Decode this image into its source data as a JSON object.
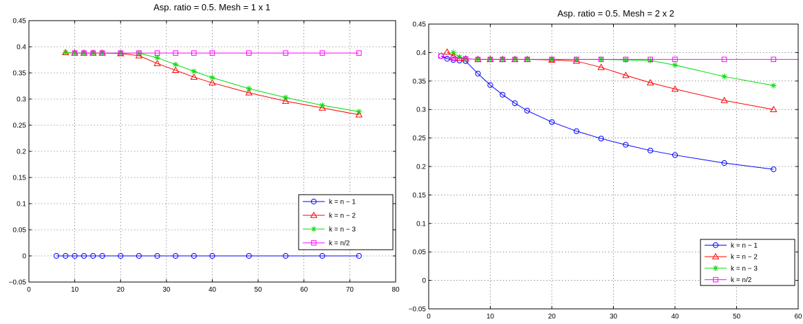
{
  "chart_data": [
    {
      "type": "line",
      "title": "Asp. ratio = 0.5.  Mesh = 1 x 1",
      "xlabel": "",
      "ylabel": "",
      "xlim": [
        0,
        80
      ],
      "ylim": [
        -0.05,
        0.45
      ],
      "xticks": [
        "0",
        "10",
        "20",
        "30",
        "40",
        "50",
        "60",
        "70",
        "80"
      ],
      "yticks": [
        "−0.05",
        "0",
        "0.05",
        "0.1",
        "0.15",
        "0.2",
        "0.25",
        "0.3",
        "0.35",
        "0.4",
        "0.45"
      ],
      "grid": true,
      "legend_position": "lower-right",
      "series": [
        {
          "name": "k = n − 1",
          "color": "#0000ff",
          "marker": "circle",
          "x": [
            6,
            8,
            10,
            12,
            14,
            16,
            20,
            24,
            28,
            32,
            36,
            40,
            48,
            56,
            64,
            72
          ],
          "y": [
            0,
            0,
            0,
            0,
            0,
            0,
            0,
            0,
            0,
            0,
            0,
            0,
            0,
            0,
            0,
            0
          ]
        },
        {
          "name": "k = n − 2",
          "color": "#ff0000",
          "marker": "triangle",
          "x": [
            8,
            10,
            12,
            14,
            16,
            20,
            24,
            28,
            32,
            36,
            40,
            48,
            56,
            64,
            72
          ],
          "y": [
            0.389,
            0.388,
            0.388,
            0.388,
            0.388,
            0.387,
            0.383,
            0.368,
            0.355,
            0.342,
            0.331,
            0.312,
            0.296,
            0.283,
            0.27
          ]
        },
        {
          "name": "k = n − 3",
          "color": "#00dd00",
          "marker": "star",
          "x": [
            8,
            10,
            12,
            14,
            16,
            20,
            24,
            28,
            32,
            36,
            40,
            48,
            56,
            64,
            72
          ],
          "y": [
            0.389,
            0.388,
            0.388,
            0.388,
            0.388,
            0.388,
            0.388,
            0.379,
            0.366,
            0.353,
            0.341,
            0.32,
            0.303,
            0.288,
            0.276
          ]
        },
        {
          "name": "k = n/2",
          "color": "#ff00ff",
          "marker": "square",
          "x": [
            10,
            12,
            14,
            16,
            20,
            24,
            28,
            32,
            36,
            40,
            48,
            56,
            64,
            72
          ],
          "y": [
            0.388,
            0.388,
            0.388,
            0.388,
            0.388,
            0.388,
            0.388,
            0.388,
            0.388,
            0.388,
            0.388,
            0.388,
            0.388,
            0.388
          ]
        }
      ]
    },
    {
      "type": "line",
      "title": "Asp. ratio = 0.5.  Mesh = 2 x 2",
      "xlabel": "",
      "ylabel": "",
      "xlim": [
        0,
        60
      ],
      "ylim": [
        -0.05,
        0.45
      ],
      "xticks": [
        "0",
        "10",
        "20",
        "30",
        "40",
        "50",
        "60"
      ],
      "yticks": [
        "−0.05",
        "0",
        "0.05",
        "0.1",
        "0.15",
        "0.2",
        "0.25",
        "0.3",
        "0.35",
        "0.4",
        "0.45"
      ],
      "grid": true,
      "legend_position": "lower-right",
      "series": [
        {
          "name": "k = n − 1",
          "color": "#0000ff",
          "marker": "circle",
          "x": [
            2,
            3,
            4,
            5,
            6,
            8,
            10,
            12,
            14,
            16,
            20,
            24,
            28,
            32,
            36,
            40,
            48,
            56
          ],
          "y": [
            0.394,
            0.389,
            0.387,
            0.386,
            0.385,
            0.363,
            0.343,
            0.326,
            0.311,
            0.298,
            0.278,
            0.262,
            0.249,
            0.238,
            0.228,
            0.22,
            0.206,
            0.195
          ]
        },
        {
          "name": "k = n − 2",
          "color": "#ff0000",
          "marker": "triangle",
          "x": [
            3,
            4,
            5,
            6,
            8,
            10,
            12,
            14,
            16,
            20,
            24,
            28,
            32,
            36,
            40,
            48,
            56
          ],
          "y": [
            0.401,
            0.394,
            0.39,
            0.389,
            0.388,
            0.388,
            0.388,
            0.388,
            0.388,
            0.387,
            0.385,
            0.374,
            0.36,
            0.347,
            0.336,
            0.316,
            0.3
          ]
        },
        {
          "name": "k = n − 3",
          "color": "#00dd00",
          "marker": "star",
          "x": [
            4,
            5,
            6,
            8,
            10,
            12,
            14,
            16,
            20,
            24,
            28,
            32,
            36,
            40,
            48,
            56
          ],
          "y": [
            0.4,
            0.392,
            0.389,
            0.388,
            0.388,
            0.388,
            0.388,
            0.388,
            0.388,
            0.388,
            0.388,
            0.387,
            0.386,
            0.378,
            0.358,
            0.342
          ]
        },
        {
          "name": "k = n/2",
          "color": "#ff00ff",
          "marker": "square",
          "x": [
            2,
            4,
            6,
            8,
            10,
            12,
            14,
            16,
            20,
            24,
            28,
            32,
            36,
            40,
            48,
            56
          ],
          "y": [
            0.394,
            0.39,
            0.389,
            0.388,
            0.388,
            0.388,
            0.388,
            0.388,
            0.388,
            0.388,
            0.388,
            0.388,
            0.388,
            0.388,
            0.388,
            0.388
          ]
        }
      ]
    }
  ]
}
